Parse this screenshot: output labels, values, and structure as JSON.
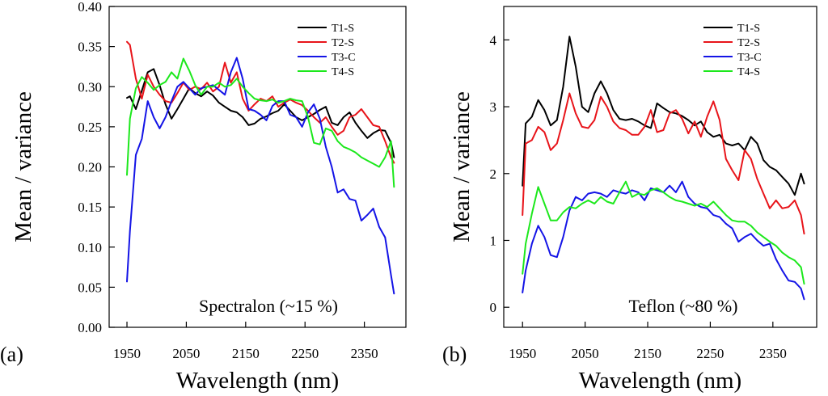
{
  "chart_data": [
    {
      "type": "line",
      "panel_label": "(a)",
      "annotation": "Spectralon (~15 %)",
      "xlabel": "Wavelength (nm)",
      "ylabel": "Mean / variance",
      "xlim": [
        1920,
        2420
      ],
      "ylim": [
        0.0,
        0.4
      ],
      "xticks": [
        1950,
        2050,
        2150,
        2250,
        2350
      ],
      "xtick_labels": [
        "1950",
        "2050",
        "2150",
        "2250",
        "2350"
      ],
      "yticks": [
        0.0,
        0.05,
        0.1,
        0.15,
        0.2,
        0.25,
        0.3,
        0.35,
        0.4
      ],
      "ytick_labels": [
        "0.00",
        "0.05",
        "0.10",
        "0.15",
        "0.20",
        "0.25",
        "0.30",
        "0.35",
        "0.40"
      ],
      "legend_position": "top-right",
      "series": [
        {
          "name": "T1-S",
          "color": "#000000",
          "x": [
            1950,
            1955,
            1965,
            1975,
            1985,
            1995,
            2005,
            2015,
            2025,
            2035,
            2045,
            2055,
            2065,
            2075,
            2085,
            2095,
            2105,
            2115,
            2125,
            2135,
            2145,
            2155,
            2165,
            2175,
            2185,
            2195,
            2205,
            2215,
            2225,
            2235,
            2245,
            2255,
            2265,
            2275,
            2285,
            2295,
            2305,
            2315,
            2325,
            2335,
            2345,
            2355,
            2365,
            2375,
            2385,
            2395,
            2400
          ],
          "values": [
            0.286,
            0.288,
            0.272,
            0.295,
            0.318,
            0.322,
            0.302,
            0.278,
            0.26,
            0.272,
            0.285,
            0.298,
            0.292,
            0.288,
            0.294,
            0.289,
            0.28,
            0.275,
            0.27,
            0.268,
            0.262,
            0.252,
            0.254,
            0.26,
            0.263,
            0.267,
            0.27,
            0.278,
            0.27,
            0.262,
            0.258,
            0.262,
            0.266,
            0.271,
            0.275,
            0.255,
            0.252,
            0.262,
            0.268,
            0.255,
            0.245,
            0.236,
            0.242,
            0.246,
            0.245,
            0.23,
            0.212
          ]
        },
        {
          "name": "T2-S",
          "color": "#e8141a",
          "x": [
            1950,
            1955,
            1965,
            1975,
            1985,
            1995,
            2005,
            2015,
            2025,
            2035,
            2045,
            2055,
            2065,
            2075,
            2085,
            2095,
            2105,
            2115,
            2125,
            2135,
            2145,
            2155,
            2165,
            2175,
            2185,
            2195,
            2205,
            2215,
            2225,
            2235,
            2245,
            2255,
            2265,
            2275,
            2285,
            2295,
            2305,
            2315,
            2325,
            2335,
            2345,
            2355,
            2365,
            2375,
            2385,
            2395,
            2400
          ],
          "values": [
            0.356,
            0.352,
            0.31,
            0.285,
            0.315,
            0.3,
            0.29,
            0.282,
            0.28,
            0.292,
            0.305,
            0.296,
            0.3,
            0.297,
            0.305,
            0.294,
            0.3,
            0.33,
            0.305,
            0.318,
            0.285,
            0.27,
            0.278,
            0.285,
            0.282,
            0.288,
            0.275,
            0.28,
            0.284,
            0.28,
            0.277,
            0.27,
            0.262,
            0.255,
            0.262,
            0.25,
            0.24,
            0.245,
            0.262,
            0.265,
            0.272,
            0.262,
            0.252,
            0.25,
            0.232,
            0.212,
            0.205
          ]
        },
        {
          "name": "T3-C",
          "color": "#1414e6",
          "x": [
            1950,
            1955,
            1965,
            1975,
            1985,
            1995,
            2005,
            2015,
            2025,
            2035,
            2045,
            2055,
            2065,
            2075,
            2085,
            2095,
            2105,
            2115,
            2125,
            2135,
            2145,
            2155,
            2165,
            2175,
            2185,
            2195,
            2205,
            2215,
            2225,
            2235,
            2245,
            2255,
            2265,
            2275,
            2285,
            2295,
            2305,
            2315,
            2325,
            2335,
            2345,
            2355,
            2365,
            2375,
            2385,
            2395,
            2400
          ],
          "values": [
            0.057,
            0.12,
            0.215,
            0.235,
            0.282,
            0.262,
            0.248,
            0.262,
            0.282,
            0.3,
            0.306,
            0.298,
            0.29,
            0.298,
            0.3,
            0.302,
            0.296,
            0.29,
            0.318,
            0.336,
            0.31,
            0.272,
            0.27,
            0.265,
            0.258,
            0.276,
            0.282,
            0.282,
            0.265,
            0.262,
            0.25,
            0.268,
            0.278,
            0.26,
            0.225,
            0.2,
            0.168,
            0.172,
            0.16,
            0.158,
            0.133,
            0.14,
            0.148,
            0.125,
            0.112,
            0.065,
            0.042
          ]
        },
        {
          "name": "T4-S",
          "color": "#1ce81c",
          "x": [
            1950,
            1955,
            1965,
            1975,
            1985,
            1995,
            2005,
            2015,
            2025,
            2035,
            2045,
            2055,
            2065,
            2075,
            2085,
            2095,
            2105,
            2115,
            2125,
            2135,
            2145,
            2155,
            2165,
            2175,
            2185,
            2195,
            2205,
            2215,
            2225,
            2235,
            2245,
            2255,
            2265,
            2275,
            2285,
            2295,
            2305,
            2315,
            2325,
            2335,
            2345,
            2355,
            2365,
            2375,
            2385,
            2395,
            2400
          ],
          "values": [
            0.19,
            0.26,
            0.298,
            0.312,
            0.305,
            0.296,
            0.302,
            0.306,
            0.318,
            0.31,
            0.335,
            0.32,
            0.302,
            0.29,
            0.3,
            0.3,
            0.305,
            0.3,
            0.302,
            0.31,
            0.3,
            0.292,
            0.285,
            0.283,
            0.282,
            0.284,
            0.28,
            0.282,
            0.285,
            0.283,
            0.282,
            0.262,
            0.23,
            0.228,
            0.248,
            0.245,
            0.232,
            0.225,
            0.222,
            0.218,
            0.212,
            0.208,
            0.204,
            0.2,
            0.212,
            0.232,
            0.175
          ]
        }
      ]
    },
    {
      "type": "line",
      "panel_label": "(b)",
      "annotation": "Teflon (~80 %)",
      "xlabel": "Wavelength (nm)",
      "ylabel": "Mean / variance",
      "xlim": [
        1920,
        2420
      ],
      "ylim": [
        -0.3,
        4.5
      ],
      "xticks": [
        1950,
        2050,
        2150,
        2250,
        2350
      ],
      "xtick_labels": [
        "1950",
        "2050",
        "2150",
        "2250",
        "2350"
      ],
      "yticks": [
        0,
        1,
        2,
        3,
        4
      ],
      "ytick_labels": [
        "0",
        "1",
        "2",
        "3",
        "4"
      ],
      "legend_position": "top-right",
      "series": [
        {
          "name": "T1-S",
          "color": "#000000",
          "x": [
            1950,
            1955,
            1965,
            1975,
            1985,
            1995,
            2005,
            2015,
            2025,
            2035,
            2045,
            2055,
            2065,
            2075,
            2085,
            2095,
            2105,
            2115,
            2125,
            2135,
            2145,
            2155,
            2165,
            2175,
            2185,
            2195,
            2205,
            2215,
            2225,
            2235,
            2245,
            2255,
            2265,
            2275,
            2285,
            2295,
            2305,
            2315,
            2325,
            2335,
            2345,
            2355,
            2365,
            2375,
            2385,
            2395,
            2400
          ],
          "values": [
            1.82,
            2.75,
            2.85,
            3.1,
            2.95,
            2.72,
            2.8,
            3.3,
            4.05,
            3.6,
            3.0,
            2.92,
            3.2,
            3.38,
            3.2,
            2.95,
            2.82,
            2.8,
            2.82,
            2.78,
            2.72,
            2.68,
            3.05,
            2.98,
            2.92,
            2.9,
            2.86,
            2.8,
            2.72,
            2.78,
            2.62,
            2.55,
            2.58,
            2.45,
            2.42,
            2.45,
            2.35,
            2.55,
            2.45,
            2.2,
            2.1,
            2.05,
            1.95,
            1.85,
            1.68,
            2.0,
            1.85
          ]
        },
        {
          "name": "T2-S",
          "color": "#e8141a",
          "x": [
            1950,
            1955,
            1965,
            1975,
            1985,
            1995,
            2005,
            2015,
            2025,
            2035,
            2045,
            2055,
            2065,
            2075,
            2085,
            2095,
            2105,
            2115,
            2125,
            2135,
            2145,
            2155,
            2165,
            2175,
            2185,
            2195,
            2205,
            2215,
            2225,
            2235,
            2245,
            2255,
            2265,
            2275,
            2285,
            2295,
            2305,
            2315,
            2325,
            2335,
            2345,
            2355,
            2365,
            2375,
            2385,
            2395,
            2400
          ],
          "values": [
            1.38,
            2.45,
            2.5,
            2.7,
            2.62,
            2.35,
            2.45,
            2.8,
            3.2,
            2.9,
            2.7,
            2.68,
            2.8,
            3.15,
            3.0,
            2.78,
            2.68,
            2.65,
            2.58,
            2.58,
            2.7,
            2.95,
            2.62,
            2.65,
            2.9,
            2.95,
            2.82,
            2.6,
            2.78,
            2.55,
            2.85,
            3.08,
            2.8,
            2.22,
            2.05,
            1.9,
            2.35,
            2.22,
            1.92,
            1.7,
            1.48,
            1.6,
            1.48,
            1.5,
            1.6,
            1.38,
            1.1
          ]
        },
        {
          "name": "T3-C",
          "color": "#1414e6",
          "x": [
            1950,
            1955,
            1965,
            1975,
            1985,
            1995,
            2005,
            2015,
            2025,
            2035,
            2045,
            2055,
            2065,
            2075,
            2085,
            2095,
            2105,
            2115,
            2125,
            2135,
            2145,
            2155,
            2165,
            2175,
            2185,
            2195,
            2205,
            2215,
            2225,
            2235,
            2245,
            2255,
            2265,
            2275,
            2285,
            2295,
            2305,
            2315,
            2325,
            2335,
            2345,
            2355,
            2365,
            2375,
            2385,
            2395,
            2400
          ],
          "values": [
            0.22,
            0.55,
            0.95,
            1.22,
            1.05,
            0.78,
            0.75,
            1.05,
            1.45,
            1.65,
            1.6,
            1.7,
            1.72,
            1.7,
            1.65,
            1.75,
            1.72,
            1.7,
            1.75,
            1.72,
            1.6,
            1.78,
            1.75,
            1.72,
            1.82,
            1.72,
            1.88,
            1.65,
            1.55,
            1.5,
            1.48,
            1.38,
            1.35,
            1.25,
            1.18,
            0.98,
            1.05,
            1.1,
            1.0,
            0.92,
            0.95,
            0.72,
            0.55,
            0.4,
            0.38,
            0.28,
            0.12
          ]
        },
        {
          "name": "T4-S",
          "color": "#1ce81c",
          "x": [
            1950,
            1955,
            1965,
            1975,
            1985,
            1995,
            2005,
            2015,
            2025,
            2035,
            2045,
            2055,
            2065,
            2075,
            2085,
            2095,
            2105,
            2115,
            2125,
            2135,
            2145,
            2155,
            2165,
            2175,
            2185,
            2195,
            2205,
            2215,
            2225,
            2235,
            2245,
            2255,
            2265,
            2275,
            2285,
            2295,
            2305,
            2315,
            2325,
            2335,
            2345,
            2355,
            2365,
            2375,
            2385,
            2395,
            2400
          ],
          "values": [
            0.5,
            0.95,
            1.4,
            1.8,
            1.55,
            1.3,
            1.3,
            1.42,
            1.5,
            1.48,
            1.55,
            1.6,
            1.55,
            1.65,
            1.58,
            1.55,
            1.72,
            1.88,
            1.65,
            1.7,
            1.68,
            1.75,
            1.78,
            1.72,
            1.65,
            1.6,
            1.58,
            1.55,
            1.52,
            1.55,
            1.5,
            1.58,
            1.48,
            1.38,
            1.3,
            1.28,
            1.28,
            1.22,
            1.12,
            1.05,
            0.98,
            0.92,
            0.82,
            0.75,
            0.7,
            0.6,
            0.35
          ]
        }
      ]
    }
  ]
}
